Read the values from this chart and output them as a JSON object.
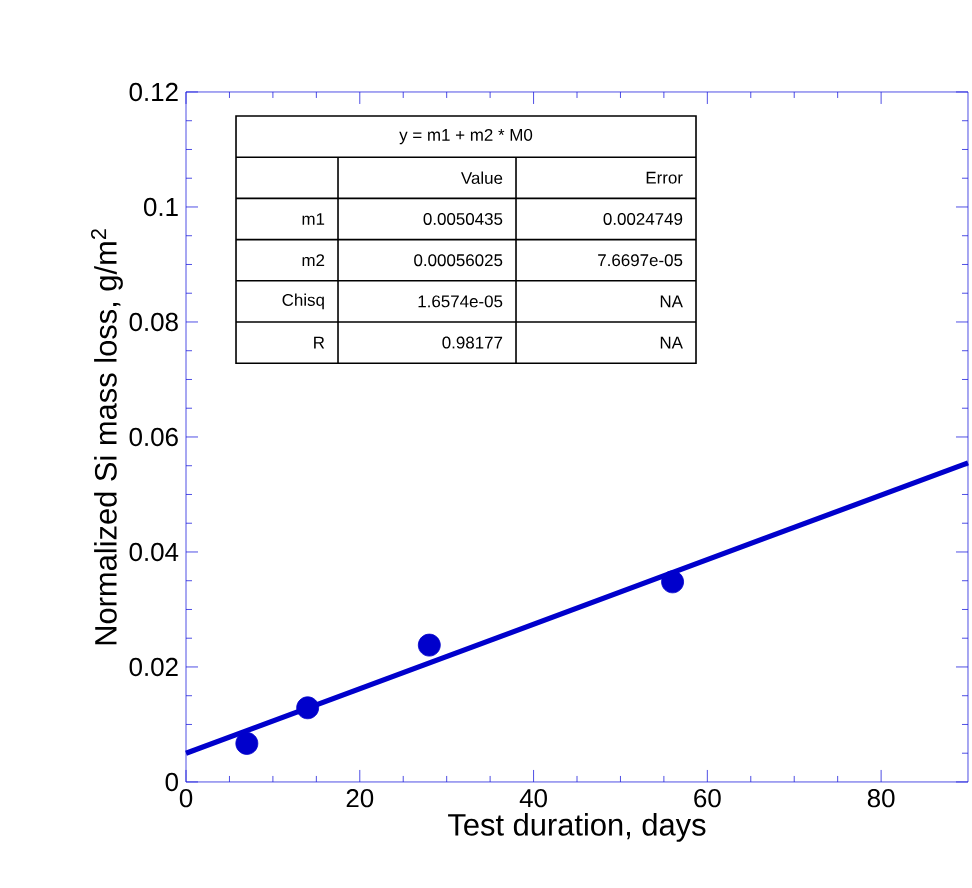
{
  "chart_data": {
    "type": "scatter",
    "xlabel": "Test duration, days",
    "ylabel": "Normalized Si mass loss, g/m$^{2}$",
    "series": [
      {
        "color": "#0000cc",
        "x": [
          7,
          14,
          28,
          56
        ],
        "values": [
          0.0067,
          0.0129,
          0.0238,
          0.0348
        ],
        "marker": "circle"
      },
      {
        "type": "line",
        "color": "#0000cc",
        "x": [
          0,
          90
        ],
        "values": [
          0.005,
          0.0555
        ],
        "marker": "none",
        "line_style": "solid"
      }
    ],
    "xlim": [
      0,
      90
    ],
    "ylim": [
      0,
      0.12
    ],
    "xticks": [
      0,
      20,
      40,
      60,
      80
    ],
    "yticks": [
      0,
      0.02,
      0.04,
      0.06,
      0.08,
      0.1,
      0.12
    ],
    "annotations": [
      "y = m1 + m2 * M0",
      "Value",
      "Error",
      "m1",
      "0.0050435",
      "0.0024749",
      "m2",
      "0.00056025",
      "7.6697e-05",
      "Chisq",
      "1.6574e-05",
      "NA",
      "R",
      "0.98177",
      "NA"
    ]
  }
}
